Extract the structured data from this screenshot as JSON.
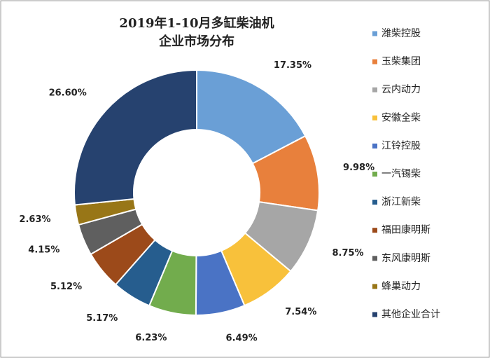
{
  "chart_data": {
    "type": "donut",
    "title": [
      "2019年1-10月多缸柴油机",
      "企业市场分布"
    ],
    "categories": [
      "潍柴控股",
      "玉柴集团",
      "云内动力",
      "安徽全柴",
      "江铃控股",
      "一汽锡柴",
      "浙江新柴",
      "福田康明斯",
      "东风康明斯",
      "蜂巢动力",
      "其他企业合计"
    ],
    "values": [
      17.35,
      9.98,
      8.75,
      7.54,
      6.49,
      6.23,
      5.17,
      5.12,
      4.15,
      2.63,
      26.6
    ],
    "value_labels": [
      "17.35%",
      "9.98%",
      "8.75%",
      "7.54%",
      "6.49%",
      "6.23%",
      "5.17%",
      "5.12%",
      "4.15%",
      "2.63%",
      "26.60%"
    ],
    "colors": [
      "#6a9fd6",
      "#e8803c",
      "#a6a6a6",
      "#f8c13b",
      "#4a73c5",
      "#72ac4d",
      "#265d8e",
      "#9c4a1a",
      "#5f5f5f",
      "#987617",
      "#26426f"
    ],
    "legend": "right"
  }
}
